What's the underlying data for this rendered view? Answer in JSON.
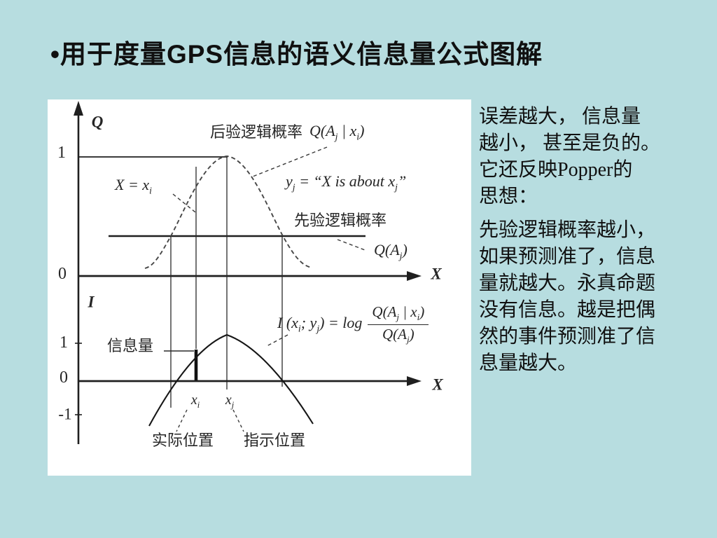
{
  "colors": {
    "background": "#b7dde0",
    "panel": "#ffffff",
    "ink": "#1f1f1f",
    "text": "#101010",
    "diagram_text": "#262626"
  },
  "title": "•用于度量GPS信息的语义信息量公式图解",
  "diagram": {
    "top": {
      "y_axis_label": "Q",
      "x_axis_label": "X",
      "tick_one": "1",
      "tick_zero": "0",
      "posterior_label": "后验逻辑概率",
      "posterior_formula": [
        [
          "t",
          "Q(A"
        ],
        [
          "s",
          "j"
        ],
        [
          "t",
          " | x"
        ],
        [
          "s",
          "i"
        ],
        [
          "t",
          ")"
        ]
      ],
      "x_equals_formula": [
        [
          "t",
          "X = x"
        ],
        [
          "s",
          "i"
        ]
      ],
      "yj_formula": [
        [
          "t",
          "y"
        ],
        [
          "s",
          "j"
        ],
        [
          "t",
          " = “X is about x"
        ],
        [
          "s",
          "j"
        ],
        [
          "t",
          "”"
        ]
      ],
      "prior_label": "先验逻辑概率",
      "prior_formula": [
        [
          "t",
          "Q(A"
        ],
        [
          "s",
          "j"
        ],
        [
          "t",
          ")"
        ]
      ]
    },
    "bottom": {
      "y_axis_label": "I",
      "x_axis_label": "X",
      "tick_one": "1",
      "tick_zero": "0",
      "tick_minus_one": "-1",
      "info_label": "信息量",
      "formula_lhs": [
        [
          "t",
          "I (x"
        ],
        [
          "s",
          "i"
        ],
        [
          "t",
          "; y"
        ],
        [
          "s",
          "j"
        ],
        [
          "t",
          ") = log"
        ]
      ],
      "formula_numerator": [
        [
          "t",
          "Q(A"
        ],
        [
          "s",
          "j"
        ],
        [
          "t",
          " | x"
        ],
        [
          "s",
          "i"
        ],
        [
          "t",
          ")"
        ]
      ],
      "formula_denominator": [
        [
          "t",
          "Q(A"
        ],
        [
          "s",
          "j"
        ],
        [
          "t",
          ")"
        ]
      ],
      "xi_tick": [
        [
          "t",
          "x"
        ],
        [
          "s",
          "i"
        ]
      ],
      "xj_tick": [
        [
          "t",
          "x"
        ],
        [
          "s",
          "j"
        ]
      ],
      "actual_position_label": "实际位置",
      "indicated_position_label": "指示位置"
    }
  },
  "notes": {
    "para1_lines": [
      "误差越大， 信息量",
      "越小， 甚至是负的。",
      "它还反映Popper的",
      "思想："
    ],
    "para2_lines": [
      "先验逻辑概率越小，",
      "如果预测准了，信息",
      "量就越大。永真命题",
      "没有信息。越是把偶",
      "然的事件预测准了信",
      "息量越大。"
    ]
  }
}
